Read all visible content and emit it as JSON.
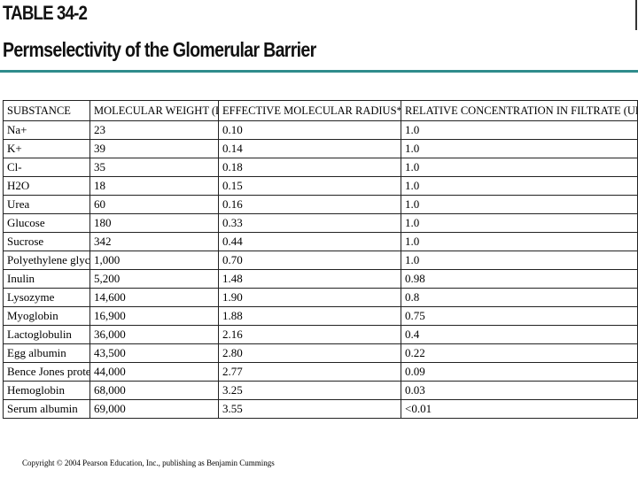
{
  "header": {
    "title": "TABLE 34-2",
    "subtitle": "Permselectivity of the Glomerular Barrier"
  },
  "table": {
    "columns": [
      "SUBSTANCE",
      "MOLECULAR WEIGHT (Da)",
      "EFFECTIVE MOLECULAR RADIUS* (nm)",
      "RELATIVE CONCENTRATION IN FILTRATE (UFX/PX)"
    ],
    "rows": [
      [
        "Na+",
        "23",
        "0.10",
        "1.0"
      ],
      [
        "K+",
        "39",
        "0.14",
        "1.0"
      ],
      [
        "Cl-",
        "35",
        "0.18",
        "1.0"
      ],
      [
        "H2O",
        "18",
        "0.15",
        "1.0"
      ],
      [
        "Urea",
        "60",
        "0.16",
        "1.0"
      ],
      [
        "Glucose",
        "180",
        "0.33",
        "1.0"
      ],
      [
        "Sucrose",
        "342",
        "0.44",
        "1.0"
      ],
      [
        "Polyethylene glycol",
        "1,000",
        "0.70",
        "1.0"
      ],
      [
        "Inulin",
        "5,200",
        "1.48",
        "0.98"
      ],
      [
        "Lysozyme",
        "14,600",
        "1.90",
        "0.8"
      ],
      [
        "Myoglobin",
        "16,900",
        "1.88",
        "0.75"
      ],
      [
        "Lactoglobulin",
        "36,000",
        "2.16",
        "0.4"
      ],
      [
        "Egg albumin",
        "43,500",
        "2.80",
        "0.22"
      ],
      [
        "Bence Jones protein",
        "44,000",
        "2.77",
        "0.09"
      ],
      [
        "Hemoglobin",
        "68,000",
        "3.25",
        "0.03"
      ],
      [
        "Serum albumin",
        "69,000",
        "3.55",
        "<0.01"
      ]
    ]
  },
  "footer": {
    "copyright": "Copyright © 2004 Pearson Education, Inc., publishing as Benjamin Cummings"
  }
}
